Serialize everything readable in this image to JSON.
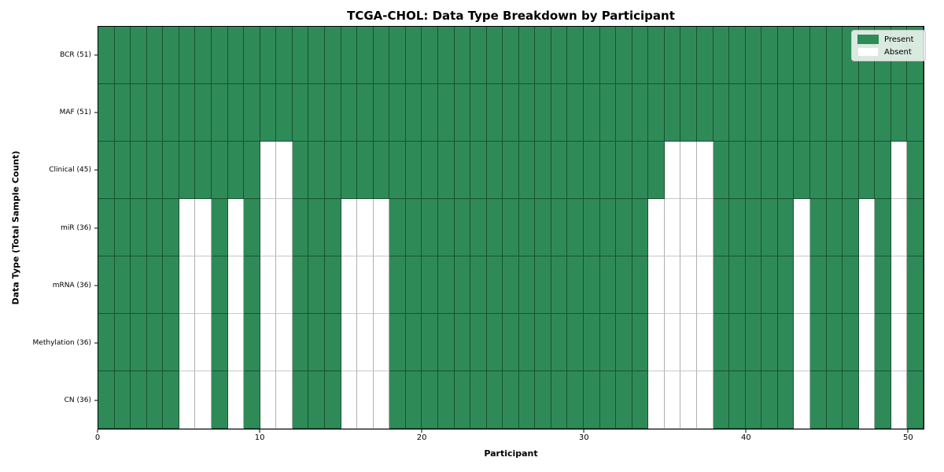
{
  "chart_data": {
    "type": "heatmap",
    "title": "TCGA-CHOL: Data Type Breakdown by Participant",
    "xlabel": "Participant",
    "ylabel": "Data Type (Total Sample Count)",
    "n_participants": 51,
    "x_ticks": [
      0,
      10,
      20,
      30,
      40,
      50
    ],
    "x_range": [
      0,
      51
    ],
    "grid": true,
    "legend_position": "upper-right",
    "cell_states": [
      "Present",
      "Absent"
    ],
    "rows": [
      {
        "label": "BCR (51)",
        "data_type": "BCR",
        "total": 51,
        "absent_participants": []
      },
      {
        "label": "MAF (51)",
        "data_type": "MAF",
        "total": 51,
        "absent_participants": []
      },
      {
        "label": "Clinical (45)",
        "data_type": "Clinical",
        "total": 45,
        "absent_participants": [
          10,
          11,
          35,
          36,
          37,
          49
        ]
      },
      {
        "label": "miR (36)",
        "data_type": "miR",
        "total": 36,
        "absent_participants": [
          5,
          6,
          8,
          10,
          11,
          15,
          16,
          17,
          34,
          35,
          36,
          37,
          43,
          47,
          49
        ]
      },
      {
        "label": "mRNA (36)",
        "data_type": "mRNA",
        "total": 36,
        "absent_participants": [
          5,
          6,
          8,
          10,
          11,
          15,
          16,
          17,
          34,
          35,
          36,
          37,
          43,
          47,
          49
        ]
      },
      {
        "label": "Methylation (36)",
        "data_type": "Methylation",
        "total": 36,
        "absent_participants": [
          5,
          6,
          8,
          10,
          11,
          15,
          16,
          17,
          34,
          35,
          36,
          37,
          43,
          47,
          49
        ]
      },
      {
        "label": "CN (36)",
        "data_type": "CN",
        "total": 36,
        "absent_participants": [
          5,
          6,
          8,
          10,
          11,
          15,
          16,
          17,
          34,
          35,
          36,
          37,
          43,
          47,
          49
        ]
      }
    ],
    "legend": [
      {
        "label": "Present",
        "color": "#2e8b57"
      },
      {
        "label": "Absent",
        "color": "#ffffff"
      }
    ],
    "colors": {
      "present": "#2e8b57",
      "absent": "#ffffff",
      "grid_line": "#b0b0b0",
      "plot_border": "#000000"
    }
  }
}
